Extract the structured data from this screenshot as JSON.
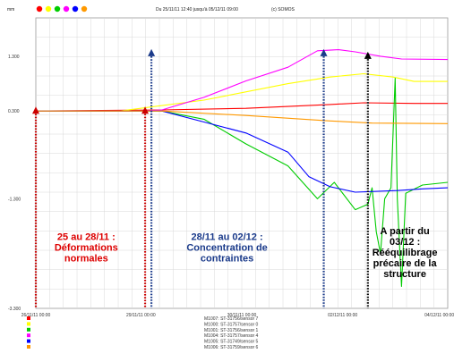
{
  "header": {
    "unit": "mm",
    "period": "Du 25/11/11 12:40 jusqu'à 05/12/11 09:00",
    "copyright": "(c) SOMOS"
  },
  "colors": {
    "palette": [
      "#ff0000",
      "#ffff00",
      "#00cc00",
      "#ff00ff",
      "#0000ff",
      "#ff9900"
    ],
    "grid": "#d8d8d8",
    "annotation_red": "#dd0000",
    "annotation_blue": "#1a3a8a",
    "annotation_black": "#000000",
    "marker_red": "#cc0000",
    "marker_blue": "#1a3a8a"
  },
  "chart_data": {
    "type": "line",
    "ylim": [
      -3.3,
      2
    ],
    "xlim": [
      0,
      9.8
    ],
    "grid": true,
    "y_ticks": [
      {
        "value": 1.3,
        "label": "1.300"
      },
      {
        "value": 0.3,
        "label": "0.300"
      },
      {
        "value": -1.3,
        "label": "-1.300"
      },
      {
        "value": -3.3,
        "label": "-3.300"
      }
    ],
    "x_ticks": [
      {
        "value": 0,
        "label": "26/11/11 00:00"
      },
      {
        "value": 2.5,
        "label": "29/11/11 00:00"
      },
      {
        "value": 4.9,
        "label": "30/11/11 00:00"
      },
      {
        "value": 7.3,
        "label": "02/12/11 00:00"
      },
      {
        "value": 9.6,
        "label": "04/12/11 00:00"
      }
    ],
    "series": [
      {
        "name": "M1007: ST-31756/sensor 7",
        "color": "#ff0000",
        "points": [
          [
            0,
            0.3
          ],
          [
            3,
            0.32
          ],
          [
            5,
            0.35
          ],
          [
            7,
            0.42
          ],
          [
            7.8,
            0.45
          ],
          [
            9,
            0.44
          ],
          [
            9.8,
            0.44
          ]
        ]
      },
      {
        "name": "M1000: ST-31757/sensor 0",
        "color": "#ffff00",
        "points": [
          [
            0,
            0.3
          ],
          [
            2,
            0.3
          ],
          [
            4,
            0.5
          ],
          [
            6,
            0.8
          ],
          [
            7,
            0.92
          ],
          [
            7.8,
            0.98
          ],
          [
            8.5,
            0.92
          ],
          [
            9,
            0.84
          ],
          [
            9.8,
            0.84
          ]
        ]
      },
      {
        "name": "M1001: ST-31756/sensor 1",
        "color": "#00cc00",
        "points": [
          [
            0,
            0.3
          ],
          [
            3,
            0.3
          ],
          [
            4,
            0.15
          ],
          [
            5,
            -0.3
          ],
          [
            6,
            -0.7
          ],
          [
            6.7,
            -1.3
          ],
          [
            7.1,
            -1.0
          ],
          [
            7.6,
            -1.5
          ],
          [
            7.9,
            -1.4
          ],
          [
            8.0,
            -1.1
          ],
          [
            8.1,
            -1.9
          ],
          [
            8.2,
            -2.3
          ],
          [
            8.3,
            -1.3
          ],
          [
            8.45,
            -1.1
          ],
          [
            8.55,
            0.9
          ],
          [
            8.6,
            -1.3
          ],
          [
            8.7,
            -2.9
          ],
          [
            8.8,
            -1.2
          ],
          [
            9.2,
            -1.05
          ],
          [
            9.8,
            -1.0
          ]
        ]
      },
      {
        "name": "M1004: ST-31757/sensor 4",
        "color": "#ff00ff",
        "points": [
          [
            0,
            0.3
          ],
          [
            2.5,
            0.3
          ],
          [
            3,
            0.32
          ],
          [
            4,
            0.55
          ],
          [
            5,
            0.85
          ],
          [
            6,
            1.1
          ],
          [
            6.7,
            1.4
          ],
          [
            7.2,
            1.42
          ],
          [
            7.6,
            1.38
          ],
          [
            8.2,
            1.3
          ],
          [
            8.7,
            1.25
          ],
          [
            9.8,
            1.24
          ]
        ]
      },
      {
        "name": "M1005: ST-31749/sensor 5",
        "color": "#0000ff",
        "points": [
          [
            0,
            0.3
          ],
          [
            3,
            0.3
          ],
          [
            4,
            0.1
          ],
          [
            5,
            -0.1
          ],
          [
            6,
            -0.45
          ],
          [
            6.5,
            -0.9
          ],
          [
            7,
            -1.08
          ],
          [
            7.6,
            -1.18
          ],
          [
            8.6,
            -1.15
          ],
          [
            9.2,
            -1.12
          ],
          [
            9.8,
            -1.1
          ]
        ]
      },
      {
        "name": "M1006: ST-31759/sensor 6",
        "color": "#ff9900",
        "points": [
          [
            0,
            0.3
          ],
          [
            3,
            0.3
          ],
          [
            5,
            0.22
          ],
          [
            7,
            0.12
          ],
          [
            8,
            0.08
          ],
          [
            9.8,
            0.07
          ]
        ]
      }
    ],
    "markers": [
      {
        "x": 0,
        "kind": "red"
      },
      {
        "x": 2.6,
        "kind": "red"
      },
      {
        "x": 2.75,
        "kind": "blue"
      },
      {
        "x": 6.85,
        "kind": "blue"
      },
      {
        "x": 7.9,
        "kind": "black"
      }
    ],
    "annotations": [
      {
        "lines": [
          "25 au 28/11 :",
          "Déformations",
          "normales"
        ],
        "x": 1.2,
        "y": -2.05,
        "color_key": "annotation_red"
      },
      {
        "lines": [
          "28/11 au 02/12 :",
          "Concentration  de",
          "contraintes"
        ],
        "x": 4.55,
        "y": -2.05,
        "color_key": "annotation_blue"
      },
      {
        "lines": [
          "A partir du",
          "03/12 :",
          "Rééquilibrage",
          "précaire de la",
          "structure"
        ],
        "x": 8.78,
        "y": -1.95,
        "color_key": "annotation_black"
      }
    ]
  }
}
